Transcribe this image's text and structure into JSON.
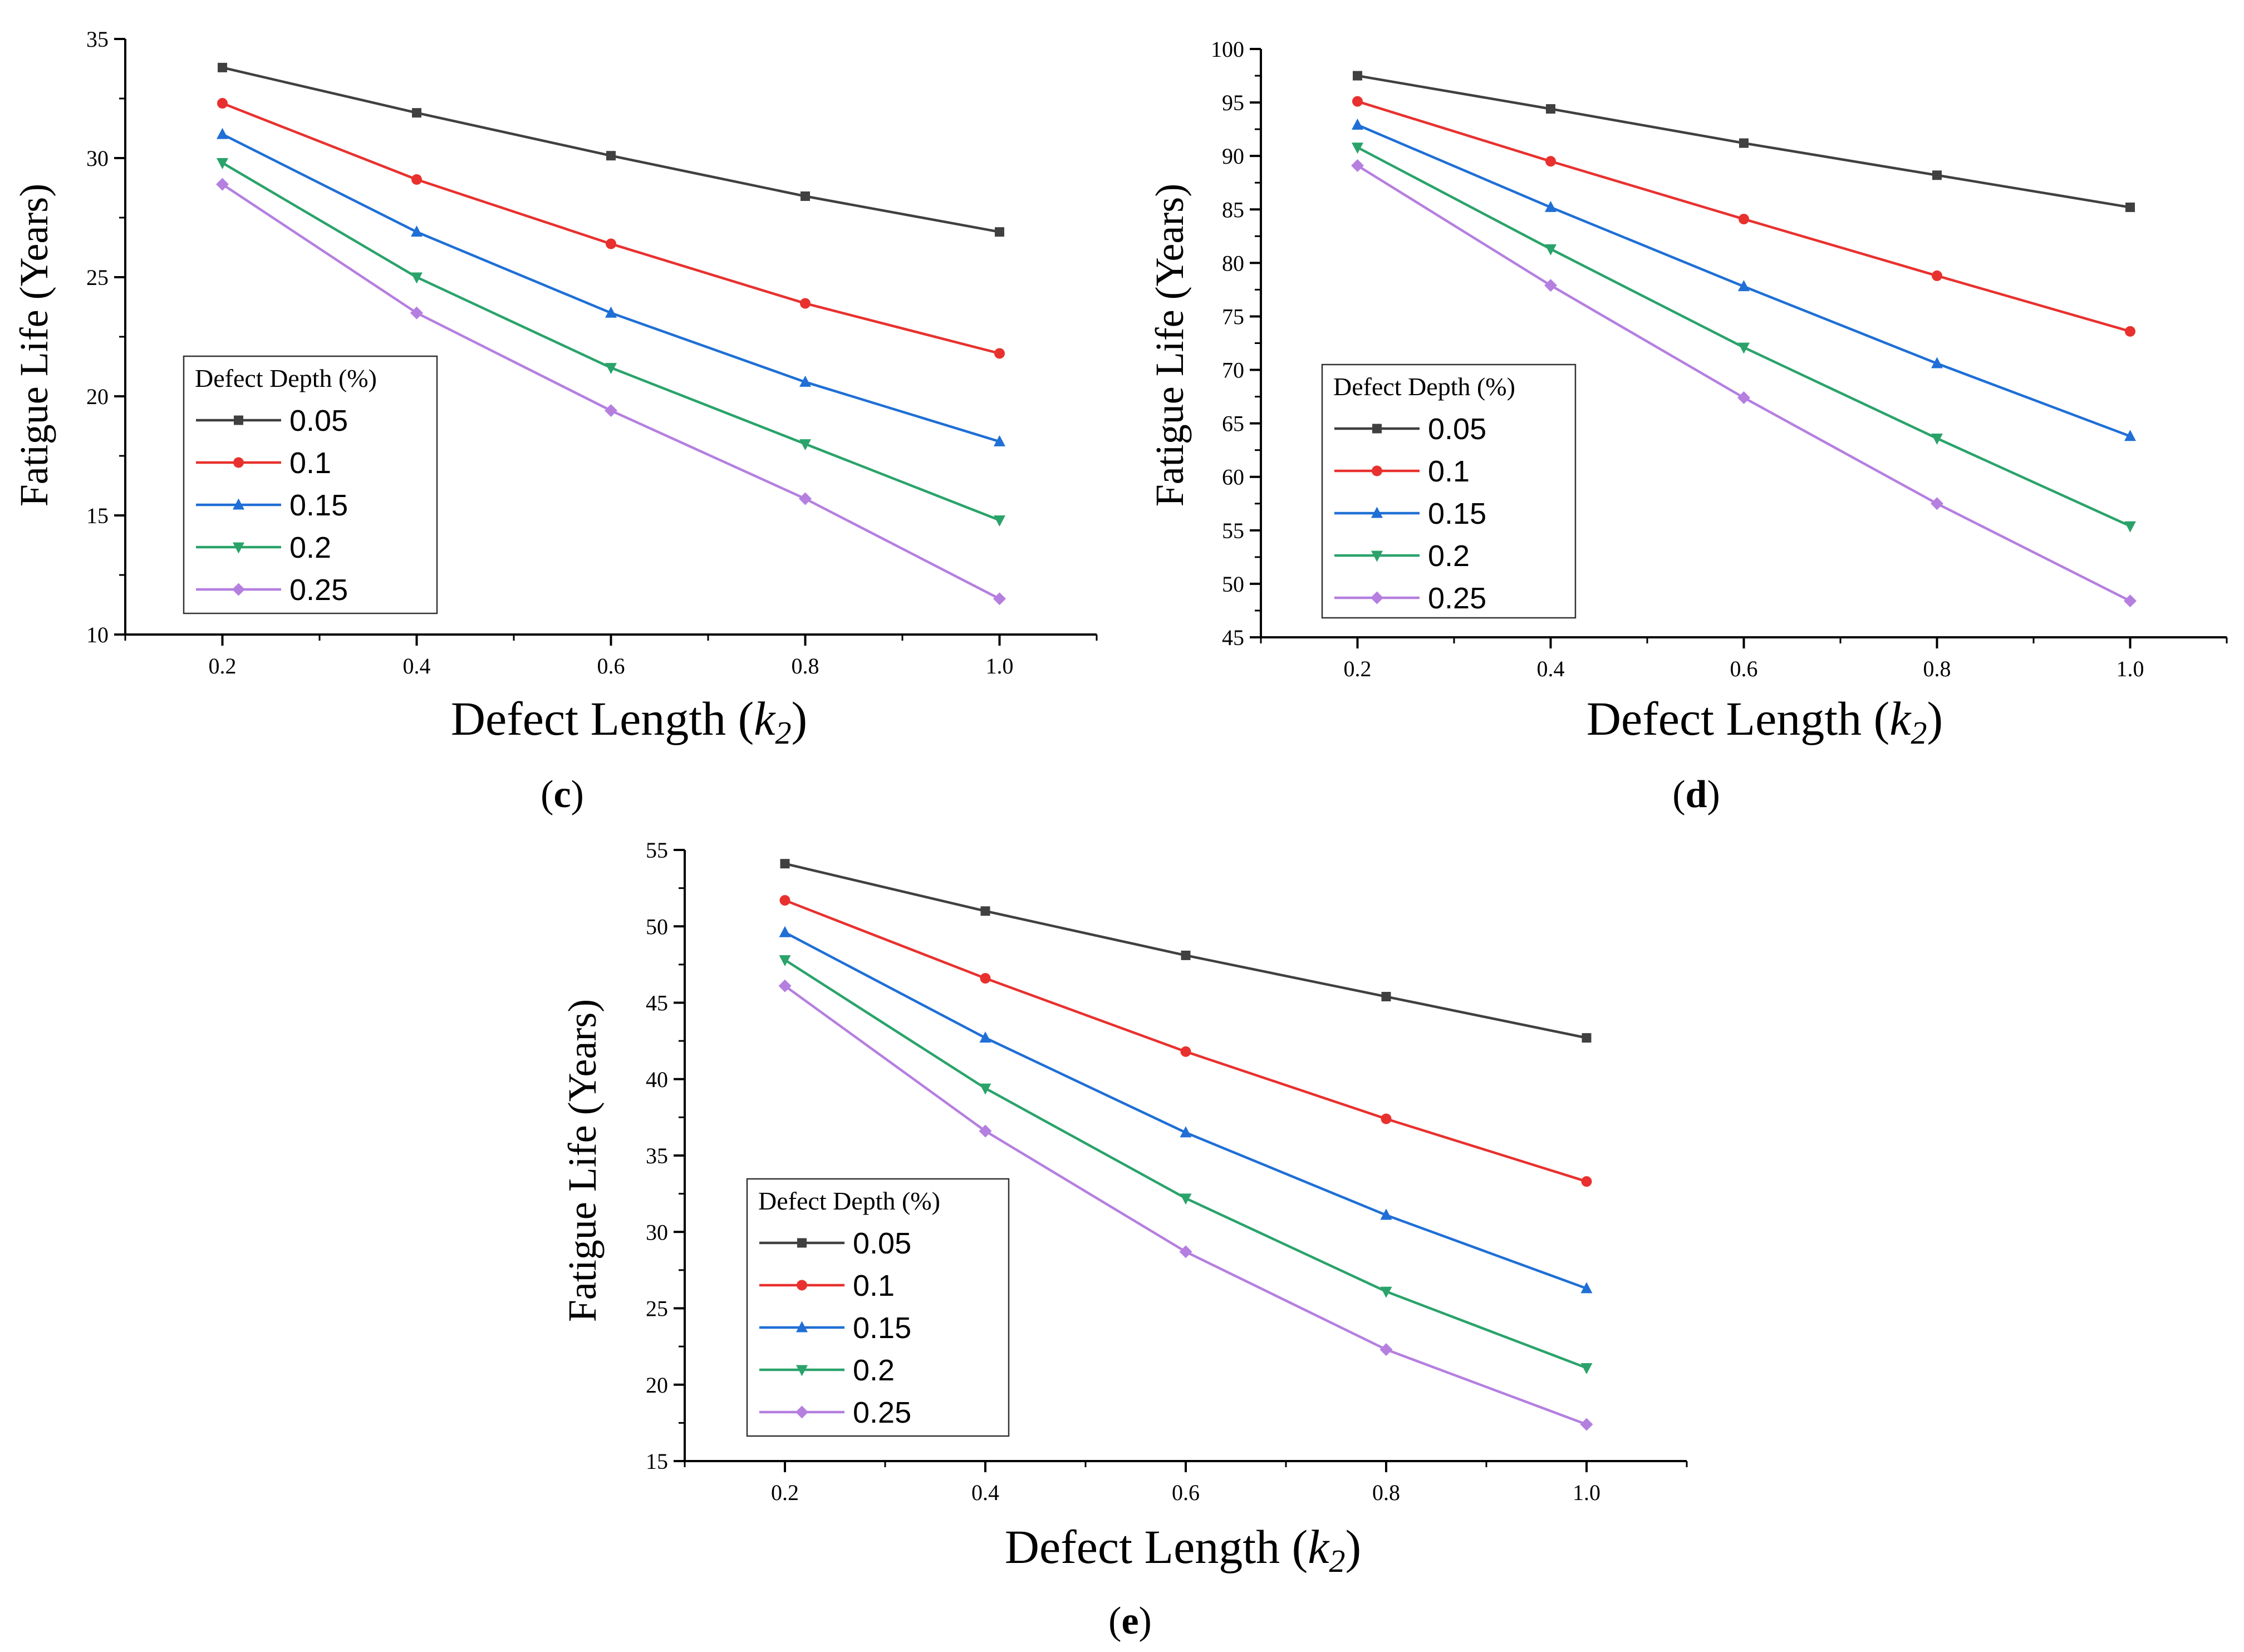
{
  "chart_data": [
    {
      "type": "line",
      "panel_label": "c",
      "xlabel": "Defect Length (k2)",
      "ylabel": "Fatigue Life (Years)",
      "x": [
        0.2,
        0.4,
        0.6,
        0.8,
        1.0
      ],
      "x_tick_labels": [
        "0.2",
        "0.4",
        "0.6",
        "0.8",
        "1.0"
      ],
      "xlim": [
        0.1,
        1.1
      ],
      "ylim": [
        10,
        35
      ],
      "y_ticks": [
        10,
        15,
        20,
        25,
        30,
        35
      ],
      "legend_title": "Defect Depth (%)",
      "legend_position": "bottom-left",
      "series": [
        {
          "name": "0.05",
          "values": [
            33.8,
            31.9,
            30.1,
            28.4,
            26.9
          ]
        },
        {
          "name": "0.1",
          "values": [
            32.3,
            29.1,
            26.4,
            23.9,
            21.8
          ]
        },
        {
          "name": "0.15",
          "values": [
            31.0,
            26.9,
            23.5,
            20.6,
            18.1
          ]
        },
        {
          "name": "0.2",
          "values": [
            29.8,
            25.0,
            21.2,
            18.0,
            14.8
          ]
        },
        {
          "name": "0.25",
          "values": [
            28.9,
            23.5,
            19.4,
            15.7,
            11.5
          ]
        }
      ]
    },
    {
      "type": "line",
      "panel_label": "d",
      "xlabel": "Defect Length (k2)",
      "ylabel": "Fatigue Life (Years)",
      "x": [
        0.2,
        0.4,
        0.6,
        0.8,
        1.0
      ],
      "x_tick_labels": [
        "0.2",
        "0.4",
        "0.6",
        "0.8",
        "1.0"
      ],
      "xlim": [
        0.1,
        1.1
      ],
      "ylim": [
        45,
        100
      ],
      "y_ticks": [
        45,
        50,
        55,
        60,
        65,
        70,
        75,
        80,
        85,
        90,
        95,
        100
      ],
      "legend_title": "Defect Depth (%)",
      "legend_position": "bottom-left",
      "series": [
        {
          "name": "0.05",
          "values": [
            97.5,
            94.4,
            91.2,
            88.2,
            85.2
          ]
        },
        {
          "name": "0.1",
          "values": [
            95.1,
            89.5,
            84.1,
            78.8,
            73.6
          ]
        },
        {
          "name": "0.15",
          "values": [
            92.9,
            85.2,
            77.8,
            70.6,
            63.8
          ]
        },
        {
          "name": "0.2",
          "values": [
            90.8,
            81.3,
            72.1,
            63.6,
            55.4
          ]
        },
        {
          "name": "0.25",
          "values": [
            89.1,
            77.9,
            67.4,
            57.5,
            48.4
          ]
        }
      ]
    },
    {
      "type": "line",
      "panel_label": "e",
      "xlabel": "Defect Length (k2)",
      "ylabel": "Fatigue Life (Years)",
      "x": [
        0.2,
        0.4,
        0.6,
        0.8,
        1.0
      ],
      "x_tick_labels": [
        "0.2",
        "0.4",
        "0.6",
        "0.8",
        "1.0"
      ],
      "xlim": [
        0.1,
        1.1
      ],
      "ylim": [
        15,
        55
      ],
      "y_ticks": [
        15,
        20,
        25,
        30,
        35,
        40,
        45,
        50,
        55
      ],
      "legend_title": "Defect Depth (%)",
      "legend_position": "bottom-left",
      "series": [
        {
          "name": "0.05",
          "values": [
            54.1,
            51.0,
            48.1,
            45.4,
            42.7
          ]
        },
        {
          "name": "0.1",
          "values": [
            51.7,
            46.6,
            41.8,
            37.4,
            33.3
          ]
        },
        {
          "name": "0.15",
          "values": [
            49.6,
            42.7,
            36.5,
            31.1,
            26.3
          ]
        },
        {
          "name": "0.2",
          "values": [
            47.8,
            39.4,
            32.2,
            26.1,
            21.1
          ]
        },
        {
          "name": "0.25",
          "values": [
            46.1,
            36.6,
            28.7,
            22.3,
            17.4
          ]
        }
      ]
    }
  ],
  "colors": [
    "#404040",
    "#e8312e",
    "#1f6fd6",
    "#2aa36a",
    "#b57fe0"
  ]
}
